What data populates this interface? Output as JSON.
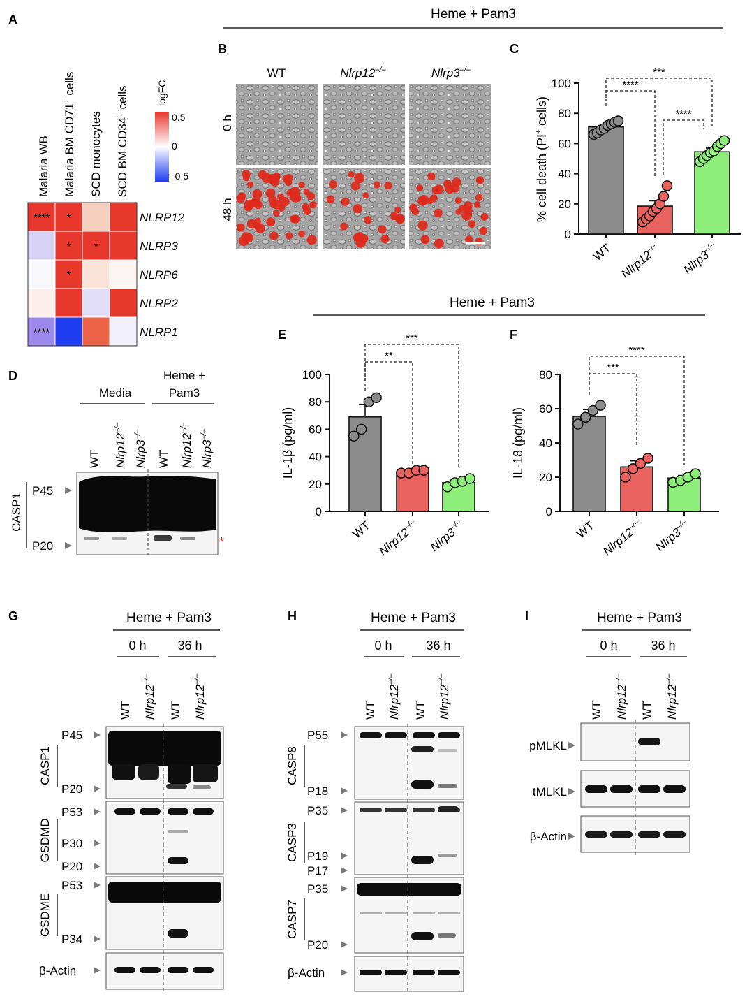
{
  "panels": {
    "A": "A",
    "B": "B",
    "C": "C",
    "D": "D",
    "E": "E",
    "F": "F",
    "G": "G",
    "H": "H",
    "I": "I"
  },
  "heme_pam3": "Heme + Pam3",
  "heatmap": {
    "columns": [
      "Malaria WB",
      "Malaria BM CD71",
      "SCD monocytes",
      "SCD BM CD34"
    ],
    "column_sup": [
      "",
      "+",
      "",
      "+"
    ],
    "column_tail": [
      "",
      " cells",
      "",
      " cells"
    ],
    "rows": [
      "NLRP12",
      "NLRP3",
      "NLRP6",
      "NLRP2",
      "NLRP1"
    ],
    "legend_title": "logFC",
    "legend_ticks": [
      "0.5",
      "0",
      "-0.5"
    ],
    "cells": [
      [
        "#e8372c",
        "#e8372c",
        "#f7cfbf",
        "#e8372c"
      ],
      [
        "#d8d2f5",
        "#e8372c",
        "#e8372c",
        "#e8372c"
      ],
      [
        "#f8f7fb",
        "#e8372c",
        "#fbe3da",
        "#fbf5f3"
      ],
      [
        "#fcefeb",
        "#e8372c",
        "#e2defa",
        "#e8372c"
      ],
      [
        "#9d88ec",
        "#1e3cf0",
        "#ec6246",
        "#f2f0fb"
      ]
    ],
    "stars": [
      [
        "****",
        "*",
        "",
        ""
      ],
      [
        "",
        "*",
        "*",
        ""
      ],
      [
        "",
        "*",
        "",
        ""
      ],
      [
        "",
        "",
        "",
        ""
      ],
      [
        "****",
        "",
        "",
        ""
      ]
    ]
  },
  "panel_b": {
    "columns": [
      "WT",
      "Nlrp12",
      "Nlrp3"
    ],
    "column_sup": [
      "",
      "–/–",
      "–/–"
    ],
    "rows": [
      "0 h",
      "48 h"
    ]
  },
  "panel_c": {
    "ylabel": "% cell death (PI",
    "ylabel_sup": "+",
    "ylabel_tail": " cells)",
    "sig": [
      "****",
      "***",
      "****"
    ]
  },
  "panel_ef_header": "Heme + Pam3",
  "panel_e": {
    "ylabel": "IL-1β (pg/ml)",
    "sig": [
      "**",
      "***"
    ]
  },
  "panel_f": {
    "ylabel": "IL-18 (pg/ml)",
    "sig": [
      "***",
      "****"
    ]
  },
  "genotypes": {
    "wt": "WT",
    "nlrp12": "Nlrp12",
    "nlrp3": "Nlrp3",
    "ko_sup": "–/–"
  },
  "chart_data": [
    {
      "type": "bar",
      "categories": [
        "WT",
        "Nlrp12–/–",
        "Nlrp3–/–"
      ],
      "values": [
        71,
        18.5,
        54.5
      ],
      "errors": [
        1.5,
        3.5,
        2.5
      ],
      "points": [
        [
          66,
          67,
          69,
          70,
          72,
          73,
          74,
          75
        ],
        [
          8,
          10,
          12,
          15,
          17,
          20,
          25,
          32
        ],
        [
          48,
          50,
          52,
          54,
          55,
          58,
          60,
          62
        ]
      ],
      "colors": [
        "#8c8c8c",
        "#e8625f",
        "#8ef07a"
      ],
      "ylim": [
        0,
        100
      ],
      "yticks": [
        0,
        20,
        40,
        60,
        80,
        100
      ]
    },
    {
      "type": "bar",
      "categories": [
        "WT",
        "Nlrp12–/–",
        "Nlrp3–/–"
      ],
      "values": [
        69,
        29,
        21
      ],
      "errors": [
        9,
        1.5,
        2
      ],
      "points": [
        [
          55,
          60,
          80,
          83
        ],
        [
          28,
          28,
          30,
          30
        ],
        [
          18,
          21,
          22,
          24
        ]
      ],
      "colors": [
        "#8c8c8c",
        "#e8625f",
        "#8ef07a"
      ],
      "ylim": [
        0,
        100
      ],
      "yticks": [
        0,
        20,
        40,
        60,
        80,
        100
      ]
    },
    {
      "type": "bar",
      "categories": [
        "WT",
        "Nlrp12–/–",
        "Nlrp3–/–"
      ],
      "values": [
        55.5,
        26,
        19.5
      ],
      "errors": [
        4,
        3.5,
        1.5
      ],
      "points": [
        [
          51,
          55,
          59,
          62
        ],
        [
          20,
          25,
          28,
          31
        ],
        [
          17,
          18,
          20,
          22
        ]
      ],
      "colors": [
        "#8c8c8c",
        "#e8625f",
        "#8ef07a"
      ],
      "ylim": [
        0,
        80
      ],
      "yticks": [
        0,
        20,
        40,
        60,
        80
      ]
    }
  ],
  "panel_d": {
    "media": "Media",
    "heme1": "Heme +",
    "heme2": "Pam3",
    "target": "CASP1",
    "bands": [
      "P45",
      "P20"
    ],
    "asterisk": "*"
  },
  "times": {
    "t0": "0 h",
    "t36": "36 h"
  },
  "panel_g": {
    "groups": [
      {
        "target": "CASP1",
        "bands": [
          "P45",
          "P20"
        ]
      },
      {
        "target": "GSDMD",
        "bands": [
          "P53",
          "P30",
          "P20"
        ]
      },
      {
        "target": "GSDME",
        "bands": [
          "P53",
          "P34"
        ]
      }
    ],
    "actin": "β-Actin"
  },
  "panel_h": {
    "groups": [
      {
        "target": "CASP8",
        "bands": [
          "P55",
          "P18"
        ]
      },
      {
        "target": "CASP3",
        "bands": [
          "P35",
          "P19",
          "P17"
        ]
      },
      {
        "target": "CASP7",
        "bands": [
          "P35",
          "P20"
        ]
      }
    ],
    "actin": "β-Actin"
  },
  "panel_i": {
    "bands": [
      "pMLKL",
      "tMLKL",
      "β-Actin"
    ]
  }
}
